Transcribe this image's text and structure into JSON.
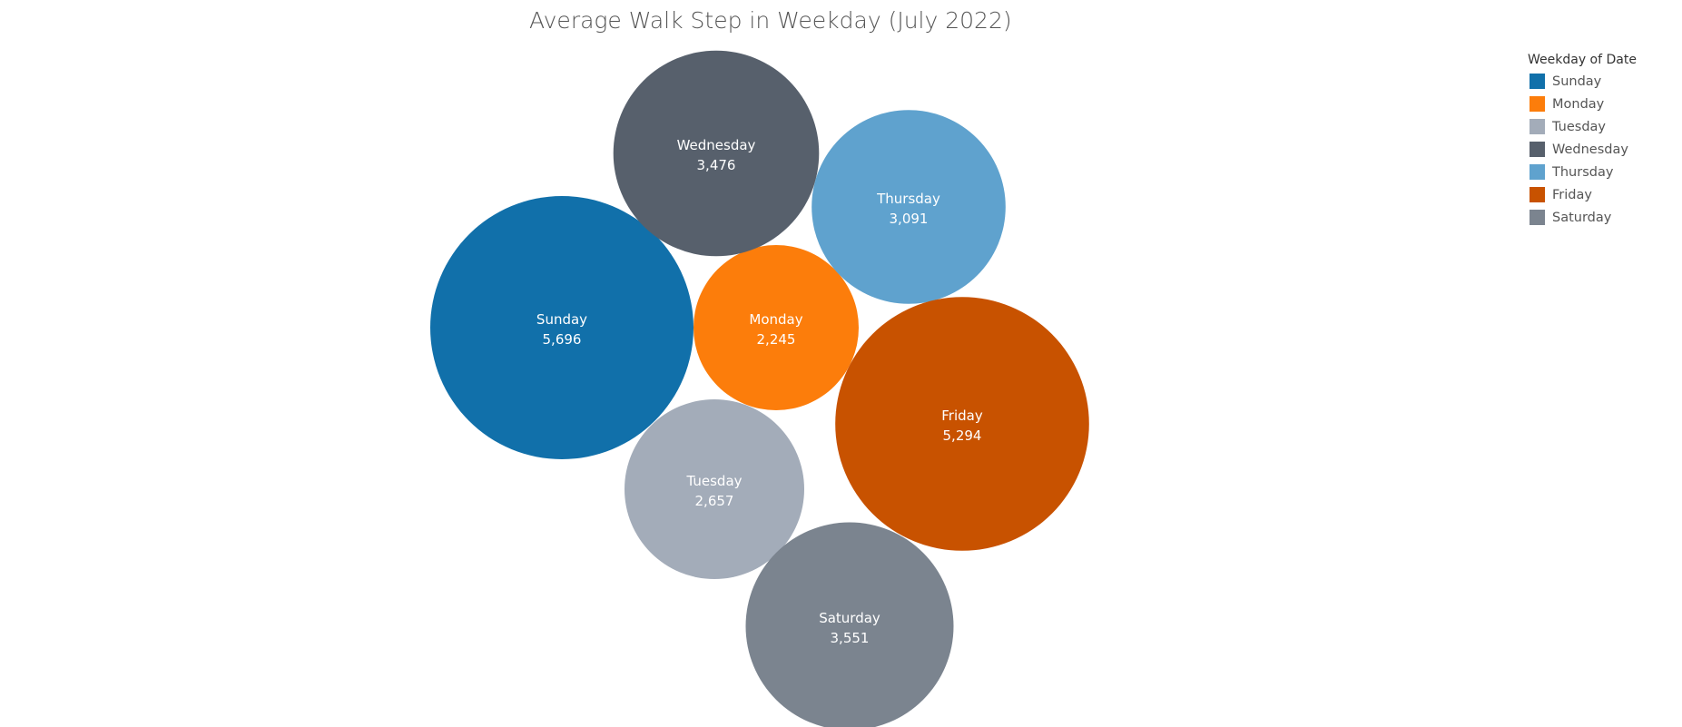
{
  "chart_data": {
    "type": "bubble",
    "title": "Average Walk Step in Weekday (July 2022)",
    "legend": {
      "title": "Weekday of Date",
      "placement": "top-right"
    },
    "series": [
      {
        "name": "Sunday",
        "value": 5696,
        "label": "5,696",
        "color": "#1170aa"
      },
      {
        "name": "Monday",
        "value": 2245,
        "label": "2,245",
        "color": "#fc7d0b"
      },
      {
        "name": "Tuesday",
        "value": 2657,
        "label": "2,657",
        "color": "#a3acb9"
      },
      {
        "name": "Wednesday",
        "value": 3476,
        "label": "3,476",
        "color": "#57606c"
      },
      {
        "name": "Thursday",
        "value": 3091,
        "label": "3,091",
        "color": "#5fa2ce"
      },
      {
        "name": "Friday",
        "value": 5294,
        "label": "5,294",
        "color": "#c85200"
      },
      {
        "name": "Saturday",
        "value": 3551,
        "label": "3,551",
        "color": "#7b848f"
      }
    ]
  }
}
